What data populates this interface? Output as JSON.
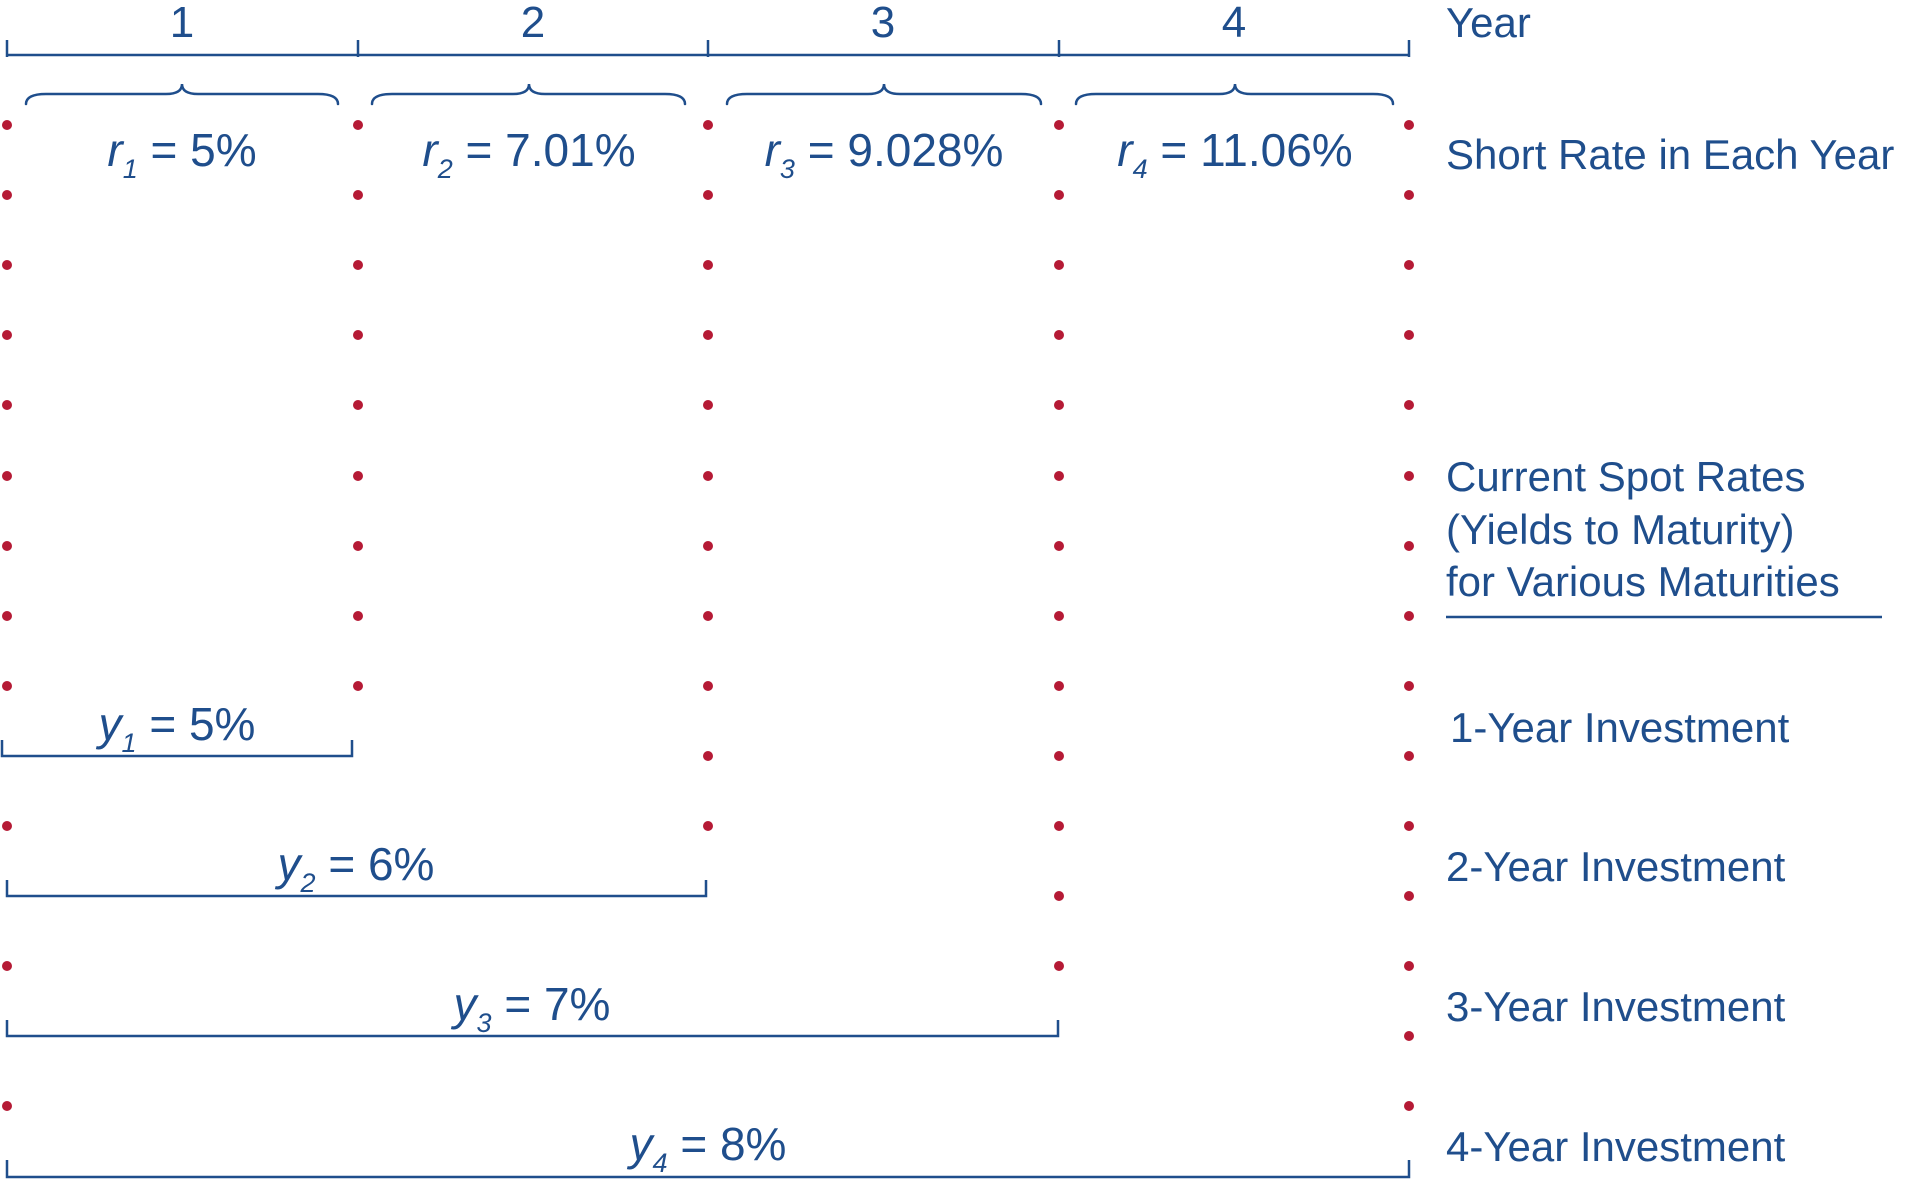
{
  "colors": {
    "ink": "#1f4e8c",
    "dots": "#b51a35"
  },
  "header": {
    "years": [
      "1",
      "2",
      "3",
      "4"
    ],
    "year_label": "Year"
  },
  "short_rates": {
    "row_label": "Short Rate in Each Year",
    "items": [
      {
        "symbol": "r",
        "sub": "1",
        "eq": " = 5%"
      },
      {
        "symbol": "r",
        "sub": "2",
        "eq": " = 7.01%"
      },
      {
        "symbol": "r",
        "sub": "3",
        "eq": " = 9.028%"
      },
      {
        "symbol": "r",
        "sub": "4",
        "eq": " = 11.06%"
      }
    ]
  },
  "spot_rates": {
    "heading_lines": [
      "Current Spot Rates",
      "(Yields to Maturity)",
      "for Various Maturities"
    ],
    "items": [
      {
        "symbol": "y",
        "sub": "1",
        "eq": " = 5%",
        "years": 1,
        "label": "1-Year Investment"
      },
      {
        "symbol": "y",
        "sub": "2",
        "eq": " = 6%",
        "years": 2,
        "label": "2-Year Investment"
      },
      {
        "symbol": "y",
        "sub": "3",
        "eq": " = 7%",
        "years": 3,
        "label": "3-Year Investment"
      },
      {
        "symbol": "y",
        "sub": "4",
        "eq": " = 8%",
        "years": 4,
        "label": "4-Year Investment"
      }
    ]
  }
}
